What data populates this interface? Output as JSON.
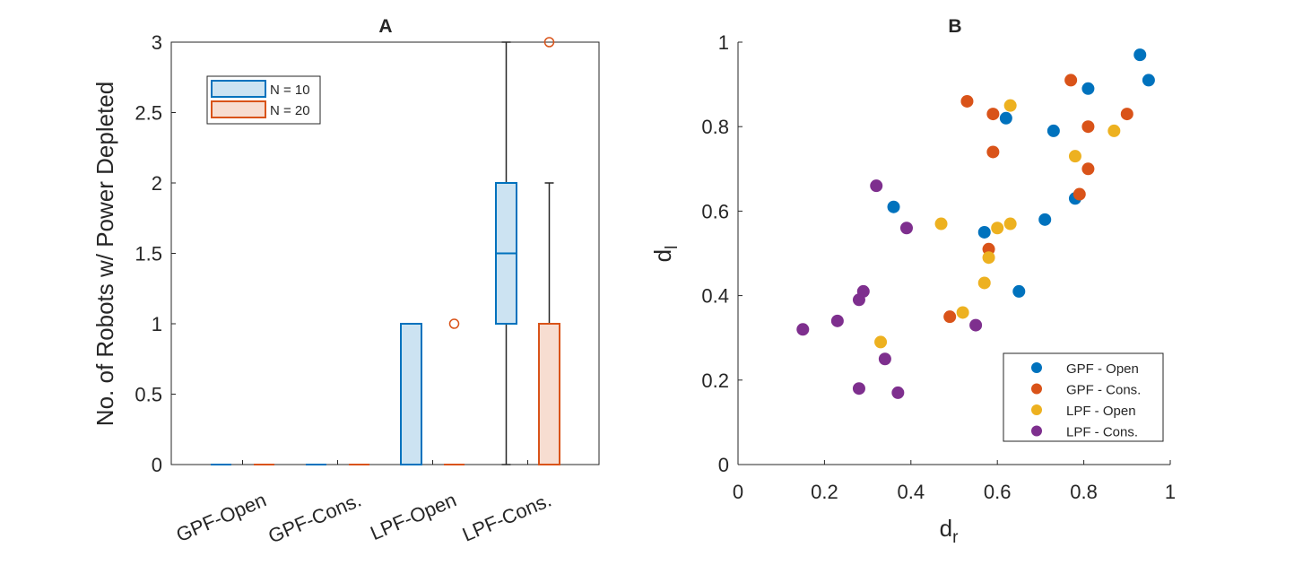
{
  "colors": {
    "n10": "#0072BD",
    "n20": "#D95319",
    "gpf_open": "#0072BD",
    "gpf_cons": "#D95319",
    "lpf_open": "#EDB120",
    "lpf_cons": "#7E2F8E",
    "axis": "#262626",
    "whisker": "#262626"
  },
  "chart_data": [
    {
      "type": "box",
      "title": "A",
      "ylabel": "No. of Robots w/ Power Depleted",
      "xlabel": "",
      "ylim": [
        0,
        3
      ],
      "yticks": [
        0,
        0.5,
        1,
        1.5,
        2,
        2.5,
        3
      ],
      "ytick_labels": [
        "0",
        "0.5",
        "1",
        "1.5",
        "2",
        "2.5",
        "3"
      ],
      "categories": [
        "GPF-Open",
        "GPF-Cons.",
        "LPF-Open",
        "LPF-Cons."
      ],
      "legend": {
        "position": "top-left",
        "entries": [
          "N = 10",
          "N = 20"
        ]
      },
      "series": [
        {
          "name": "N = 10",
          "boxes": [
            {
              "category": "GPF-Open",
              "q1": 0,
              "median": 0,
              "q3": 0,
              "whisker_low": 0,
              "whisker_high": 0,
              "outliers": []
            },
            {
              "category": "GPF-Cons.",
              "q1": 0,
              "median": 0,
              "q3": 0,
              "whisker_low": 0,
              "whisker_high": 0,
              "outliers": []
            },
            {
              "category": "LPF-Open",
              "q1": 0,
              "median": 0,
              "q3": 1,
              "whisker_low": 0,
              "whisker_high": 1,
              "outliers": []
            },
            {
              "category": "LPF-Cons.",
              "q1": 1,
              "median": 1.5,
              "q3": 2,
              "whisker_low": 0,
              "whisker_high": 3,
              "outliers": []
            }
          ]
        },
        {
          "name": "N = 20",
          "boxes": [
            {
              "category": "GPF-Open",
              "q1": 0,
              "median": 0,
              "q3": 0,
              "whisker_low": 0,
              "whisker_high": 0,
              "outliers": []
            },
            {
              "category": "GPF-Cons.",
              "q1": 0,
              "median": 0,
              "q3": 0,
              "whisker_low": 0,
              "whisker_high": 0,
              "outliers": []
            },
            {
              "category": "LPF-Open",
              "q1": 0,
              "median": 0,
              "q3": 0,
              "whisker_low": 0,
              "whisker_high": 0,
              "outliers": [
                1
              ]
            },
            {
              "category": "LPF-Cons.",
              "q1": 0,
              "median": 0,
              "q3": 1,
              "whisker_low": 0,
              "whisker_high": 2,
              "outliers": [
                3
              ]
            }
          ]
        }
      ]
    },
    {
      "type": "scatter",
      "title": "B",
      "xlabel": "d",
      "xlabel_sub": "r",
      "ylabel": "d",
      "ylabel_sub": "l",
      "xlim": [
        0,
        1
      ],
      "ylim": [
        0,
        1
      ],
      "xticks": [
        0,
        0.2,
        0.4,
        0.6,
        0.8,
        1
      ],
      "xtick_labels": [
        "0",
        "0.2",
        "0.4",
        "0.6",
        "0.8",
        "1"
      ],
      "yticks": [
        0,
        0.2,
        0.4,
        0.6,
        0.8,
        1
      ],
      "ytick_labels": [
        "0",
        "0.2",
        "0.4",
        "0.6",
        "0.8",
        "1"
      ],
      "legend": {
        "position": "bottom-right"
      },
      "series": [
        {
          "name": "GPF - Open",
          "points": [
            [
              0.93,
              0.97
            ],
            [
              0.95,
              0.91
            ],
            [
              0.81,
              0.89
            ],
            [
              0.62,
              0.82
            ],
            [
              0.73,
              0.79
            ],
            [
              0.78,
              0.63
            ],
            [
              0.36,
              0.61
            ],
            [
              0.71,
              0.58
            ],
            [
              0.57,
              0.55
            ],
            [
              0.65,
              0.41
            ]
          ]
        },
        {
          "name": "GPF - Cons.",
          "points": [
            [
              0.77,
              0.91
            ],
            [
              0.53,
              0.86
            ],
            [
              0.59,
              0.83
            ],
            [
              0.9,
              0.83
            ],
            [
              0.81,
              0.8
            ],
            [
              0.59,
              0.74
            ],
            [
              0.81,
              0.7
            ],
            [
              0.79,
              0.64
            ],
            [
              0.58,
              0.51
            ],
            [
              0.49,
              0.35
            ]
          ]
        },
        {
          "name": "LPF - Open",
          "points": [
            [
              0.63,
              0.85
            ],
            [
              0.87,
              0.79
            ],
            [
              0.78,
              0.73
            ],
            [
              0.47,
              0.57
            ],
            [
              0.63,
              0.57
            ],
            [
              0.6,
              0.56
            ],
            [
              0.58,
              0.49
            ],
            [
              0.57,
              0.43
            ],
            [
              0.52,
              0.36
            ],
            [
              0.33,
              0.29
            ]
          ]
        },
        {
          "name": "LPF - Cons.",
          "points": [
            [
              0.32,
              0.66
            ],
            [
              0.39,
              0.56
            ],
            [
              0.29,
              0.41
            ],
            [
              0.28,
              0.39
            ],
            [
              0.23,
              0.34
            ],
            [
              0.55,
              0.33
            ],
            [
              0.15,
              0.32
            ],
            [
              0.34,
              0.25
            ],
            [
              0.28,
              0.18
            ],
            [
              0.37,
              0.17
            ]
          ]
        }
      ]
    }
  ]
}
